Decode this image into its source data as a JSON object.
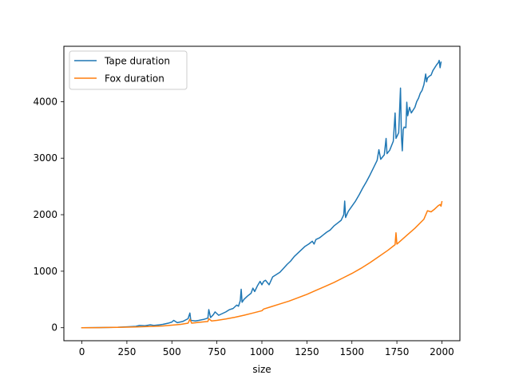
{
  "chart_data": {
    "type": "line",
    "title": "",
    "xlabel": "size",
    "ylabel": "",
    "xlim": [
      -100,
      2100
    ],
    "ylim": [
      -230,
      4980
    ],
    "xticks": [
      0,
      250,
      500,
      750,
      1000,
      1250,
      1500,
      1750,
      2000
    ],
    "xtick_labels": [
      "0",
      "250",
      "500",
      "750",
      "1000",
      "1250",
      "1500",
      "1750",
      "2000"
    ],
    "yticks": [
      0,
      1000,
      2000,
      3000,
      4000
    ],
    "ytick_labels": [
      "0",
      "1000",
      "2000",
      "3000",
      "4000"
    ],
    "grid": false,
    "legend_position": "upper-left",
    "series": [
      {
        "name": "Tape duration",
        "color": "#1f77b4",
        "points": [
          [
            0,
            0
          ],
          [
            50,
            1
          ],
          [
            100,
            3
          ],
          [
            150,
            5
          ],
          [
            200,
            8
          ],
          [
            250,
            15
          ],
          [
            300,
            25
          ],
          [
            320,
            40
          ],
          [
            350,
            35
          ],
          [
            380,
            50
          ],
          [
            400,
            40
          ],
          [
            430,
            50
          ],
          [
            450,
            60
          ],
          [
            480,
            80
          ],
          [
            500,
            100
          ],
          [
            510,
            130
          ],
          [
            530,
            90
          ],
          [
            560,
            110
          ],
          [
            590,
            160
          ],
          [
            600,
            260
          ],
          [
            605,
            130
          ],
          [
            630,
            120
          ],
          [
            650,
            130
          ],
          [
            680,
            150
          ],
          [
            700,
            170
          ],
          [
            705,
            320
          ],
          [
            715,
            180
          ],
          [
            730,
            230
          ],
          [
            740,
            280
          ],
          [
            760,
            220
          ],
          [
            780,
            250
          ],
          [
            800,
            280
          ],
          [
            820,
            320
          ],
          [
            840,
            340
          ],
          [
            860,
            400
          ],
          [
            870,
            380
          ],
          [
            880,
            480
          ],
          [
            885,
            680
          ],
          [
            890,
            450
          ],
          [
            900,
            500
          ],
          [
            920,
            560
          ],
          [
            940,
            610
          ],
          [
            950,
            700
          ],
          [
            960,
            640
          ],
          [
            975,
            740
          ],
          [
            990,
            820
          ],
          [
            1000,
            760
          ],
          [
            1010,
            820
          ],
          [
            1020,
            840
          ],
          [
            1040,
            760
          ],
          [
            1060,
            900
          ],
          [
            1080,
            940
          ],
          [
            1100,
            980
          ],
          [
            1120,
            1050
          ],
          [
            1140,
            1120
          ],
          [
            1160,
            1180
          ],
          [
            1180,
            1260
          ],
          [
            1200,
            1320
          ],
          [
            1220,
            1380
          ],
          [
            1240,
            1440
          ],
          [
            1260,
            1480
          ],
          [
            1280,
            1530
          ],
          [
            1290,
            1480
          ],
          [
            1300,
            1560
          ],
          [
            1320,
            1590
          ],
          [
            1340,
            1640
          ],
          [
            1360,
            1690
          ],
          [
            1380,
            1730
          ],
          [
            1400,
            1800
          ],
          [
            1420,
            1850
          ],
          [
            1440,
            1900
          ],
          [
            1455,
            2000
          ],
          [
            1460,
            2240
          ],
          [
            1465,
            1950
          ],
          [
            1480,
            2060
          ],
          [
            1500,
            2150
          ],
          [
            1520,
            2240
          ],
          [
            1540,
            2350
          ],
          [
            1560,
            2470
          ],
          [
            1580,
            2580
          ],
          [
            1600,
            2700
          ],
          [
            1620,
            2830
          ],
          [
            1640,
            2960
          ],
          [
            1650,
            3150
          ],
          [
            1660,
            2980
          ],
          [
            1680,
            3060
          ],
          [
            1690,
            3350
          ],
          [
            1695,
            3080
          ],
          [
            1710,
            3140
          ],
          [
            1730,
            3300
          ],
          [
            1740,
            3800
          ],
          [
            1745,
            3350
          ],
          [
            1760,
            3450
          ],
          [
            1770,
            4240
          ],
          [
            1775,
            3400
          ],
          [
            1780,
            3130
          ],
          [
            1785,
            3500
          ],
          [
            1790,
            3550
          ],
          [
            1800,
            3540
          ],
          [
            1805,
            3990
          ],
          [
            1810,
            3750
          ],
          [
            1820,
            3900
          ],
          [
            1830,
            3800
          ],
          [
            1850,
            3900
          ],
          [
            1860,
            4000
          ],
          [
            1870,
            4060
          ],
          [
            1880,
            4150
          ],
          [
            1890,
            4200
          ],
          [
            1900,
            4300
          ],
          [
            1910,
            4490
          ],
          [
            1915,
            4350
          ],
          [
            1920,
            4420
          ],
          [
            1930,
            4450
          ],
          [
            1940,
            4470
          ],
          [
            1950,
            4550
          ],
          [
            1960,
            4600
          ],
          [
            1970,
            4650
          ],
          [
            1980,
            4690
          ],
          [
            1985,
            4730
          ],
          [
            1990,
            4600
          ],
          [
            1995,
            4700
          ]
        ]
      },
      {
        "name": "Fox duration",
        "color": "#ff7f0e",
        "points": [
          [
            0,
            0
          ],
          [
            100,
            2
          ],
          [
            200,
            6
          ],
          [
            300,
            14
          ],
          [
            400,
            25
          ],
          [
            450,
            32
          ],
          [
            500,
            45
          ],
          [
            550,
            60
          ],
          [
            590,
            80
          ],
          [
            600,
            150
          ],
          [
            610,
            80
          ],
          [
            650,
            95
          ],
          [
            700,
            110
          ],
          [
            705,
            160
          ],
          [
            720,
            120
          ],
          [
            750,
            130
          ],
          [
            800,
            155
          ],
          [
            850,
            185
          ],
          [
            900,
            220
          ],
          [
            950,
            260
          ],
          [
            1000,
            300
          ],
          [
            1010,
            330
          ],
          [
            1050,
            370
          ],
          [
            1100,
            420
          ],
          [
            1150,
            470
          ],
          [
            1200,
            530
          ],
          [
            1250,
            590
          ],
          [
            1300,
            660
          ],
          [
            1350,
            730
          ],
          [
            1400,
            800
          ],
          [
            1450,
            880
          ],
          [
            1500,
            960
          ],
          [
            1550,
            1050
          ],
          [
            1600,
            1150
          ],
          [
            1650,
            1260
          ],
          [
            1700,
            1370
          ],
          [
            1740,
            1470
          ],
          [
            1745,
            1680
          ],
          [
            1750,
            1480
          ],
          [
            1800,
            1620
          ],
          [
            1850,
            1760
          ],
          [
            1900,
            1920
          ],
          [
            1920,
            2070
          ],
          [
            1940,
            2050
          ],
          [
            1960,
            2100
          ],
          [
            1980,
            2160
          ],
          [
            1990,
            2180
          ],
          [
            1995,
            2150
          ],
          [
            2000,
            2230
          ]
        ]
      }
    ]
  }
}
